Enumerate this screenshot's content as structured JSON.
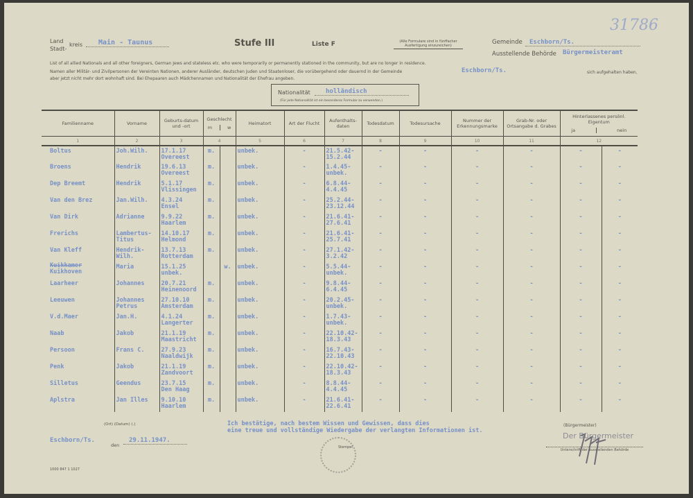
{
  "archive_number": "31786",
  "header": {
    "land_label": "Land",
    "stadt_label": "Stadt-",
    "kreis_label": "kreis",
    "kreis_value": "Main - Taunus",
    "stufe": "Stufe III",
    "liste": "Liste F",
    "instruction_note_1": "(Alle Formulare sind in fünffacher",
    "instruction_note_2": "Ausfertigung einzureichen)",
    "gemeinde_label": "Gemeinde",
    "gemeinde_value": "Eschborn/Ts.",
    "behoerde_label": "Ausstellende Behörde",
    "behoerde_value": "Bürgermeisteramt",
    "intro_en": "List of all allied Nationals and all other foreigners, German Jews and stateless etc. who were temporarily or permanently stationed in the community, but are no longer in residence.",
    "intro_de_1": "Namen aller Militär- und Zivilpersonen der Vereinten Nationen, anderer Ausländer, deutschen Juden und Staatenloser, die vorübergehend oder dauernd in der Gemeinde",
    "intro_de_place": "Eschborn/Ts.",
    "intro_de_2": "sich aufgehalten haben,",
    "intro_de_3": "aber jetzt nicht mehr dort wohnhaft sind.   Bei Ehepaaren auch Mädchennamen und Nationalität der Ehefrau angeben.",
    "nationality_label": "Nationalität",
    "nationality_value": "holländisch",
    "nationality_note": "(Für jede Nationalität ist ein besonderes Formular zu verwenden.)"
  },
  "table": {
    "columns": [
      "Familienname",
      "Vorname",
      "Geburts-datum und -ort",
      "Geschlecht",
      "m",
      "w",
      "Heimatort",
      "Art der Flucht",
      "Aufenthalts-daten",
      "Todesdatum",
      "Todesursache",
      "Nummer der Erkennungsmarke",
      "Grab-Nr. oder Ortsangabe d. Grabes",
      "Hinterlassenes persönl. Eigentum",
      "ja",
      "nein"
    ],
    "column_numbers": [
      "1",
      "2",
      "3",
      "4",
      "5",
      "6",
      "7",
      "8",
      "9",
      "10",
      "11",
      "12"
    ],
    "rows": [
      {
        "name": "Boltus",
        "first": "Joh.Wilh.",
        "birth": "17.1.17",
        "place": "Overeest",
        "m": "m.",
        "w": "",
        "home": "unbek.",
        "flight": "-",
        "stay1": "21.5.42-",
        "stay2": "15.2.44",
        "death": "-",
        "cause": "-",
        "tag": "-",
        "grave": "-",
        "ja": "-",
        "nein": "-"
      },
      {
        "name": "Broens",
        "first": "Hendrik",
        "birth": "19.6.13",
        "place": "Overeest",
        "m": "m.",
        "w": "",
        "home": "unbek.",
        "flight": "-",
        "stay1": "1.4.45-",
        "stay2": "unbek.",
        "death": "-",
        "cause": "-",
        "tag": "-",
        "grave": "-",
        "ja": "-",
        "nein": "-"
      },
      {
        "name": "Dep Breemt",
        "first": "Hendrik",
        "birth": "5.1.17",
        "place": "Vlissingen",
        "m": "m.",
        "w": "",
        "home": "unbek.",
        "flight": "-",
        "stay1": "6.8.44-",
        "stay2": "4.4.45",
        "death": "-",
        "cause": "-",
        "tag": "-",
        "grave": "-",
        "ja": "-",
        "nein": "-"
      },
      {
        "name": "Van den Brez",
        "first": "Jan.Wilh.",
        "birth": "4.3.24",
        "place": "Ensel",
        "m": "m.",
        "w": "",
        "home": "unbek.",
        "flight": "-",
        "stay1": "25.2.44-",
        "stay2": "23.12.44",
        "death": "-",
        "cause": "-",
        "tag": "-",
        "grave": "-",
        "ja": "-",
        "nein": "-"
      },
      {
        "name": "Van Dirk",
        "first": "Adrianne",
        "birth": "9.9.22",
        "place": "Haarlem",
        "m": "m.",
        "w": "",
        "home": "unbek.",
        "flight": "-",
        "stay1": "21.6.41-",
        "stay2": "27.6.41",
        "death": "-",
        "cause": "-",
        "tag": "-",
        "grave": "-",
        "ja": "-",
        "nein": "-"
      },
      {
        "name": "Frerichs",
        "first": "Lambertus-",
        "first2": "Titus",
        "birth": "14.10.17",
        "place": "Helmond",
        "m": "m.",
        "w": "",
        "home": "unbek.",
        "flight": "-",
        "stay1": "21.6.41-",
        "stay2": "25.7.41",
        "death": "-",
        "cause": "-",
        "tag": "-",
        "grave": "-",
        "ja": "-",
        "nein": "-"
      },
      {
        "name": "Van Kleff",
        "first": "Hendrik-",
        "first2": "Wilh.",
        "birth": "13.7.13",
        "place": "Rotterdam",
        "m": "m.",
        "w": "",
        "home": "unbek.",
        "flight": "-",
        "stay1": "27.1.42-",
        "stay2": "3.2.42",
        "death": "-",
        "cause": "-",
        "tag": "-",
        "grave": "-",
        "ja": "-",
        "nein": "-"
      },
      {
        "name": "Kuikhoven",
        "struck": "Kuikkamer",
        "first": "Maria",
        "birth": "15.1.25",
        "place": "unbek.",
        "m": "",
        "w": "w.",
        "home": "unbek.",
        "flight": "-",
        "stay1": "5.5.44-",
        "stay2": "unbek.",
        "death": "-",
        "cause": "-",
        "tag": "-",
        "grave": "-",
        "ja": "-",
        "nein": "-"
      },
      {
        "name": "Laarheer",
        "first": "Johannes",
        "birth": "20.7.21",
        "place": "Heinenoord",
        "m": "m.",
        "w": "",
        "home": "unbek.",
        "flight": "-",
        "stay1": "9.8.44-",
        "stay2": "6.4.45",
        "death": "-",
        "cause": "-",
        "tag": "-",
        "grave": "-",
        "ja": "-",
        "nein": "-"
      },
      {
        "name": "Leeuwen",
        "first": "Johannes",
        "first2": "Petrus",
        "birth": "27.10.10",
        "place": "Amsterdam",
        "m": "m.",
        "w": "",
        "home": "unbek.",
        "flight": "-",
        "stay1": "20.2.45-",
        "stay2": "unbek.",
        "death": "-",
        "cause": "-",
        "tag": "-",
        "grave": "-",
        "ja": "-",
        "nein": "-"
      },
      {
        "name": "V.d.Maer",
        "first": "Jan.H.",
        "birth": "4.1.24",
        "place": "Langerter",
        "m": "m.",
        "w": "",
        "home": "unbek.",
        "flight": "-",
        "stay1": "1.7.43-",
        "stay2": "unbek.",
        "death": "-",
        "cause": "-",
        "tag": "-",
        "grave": "-",
        "ja": "-",
        "nein": "-"
      },
      {
        "name": "Naab",
        "first": "Jakob",
        "birth": "21.1.19",
        "place": "Maastricht",
        "m": "m.",
        "w": "",
        "home": "unbek.",
        "flight": "-",
        "stay1": "22.10.42-",
        "stay2": "18.3.43",
        "death": "-",
        "cause": "-",
        "tag": "-",
        "grave": "-",
        "ja": "-",
        "nein": "-"
      },
      {
        "name": "Persoon",
        "first": "Frans C.",
        "birth": "27.9.23",
        "place": "Naaldwijk",
        "m": "m.",
        "w": "",
        "home": "unbek.",
        "flight": "-",
        "stay1": "16.7.43-",
        "stay2": "22.10.43",
        "death": "-",
        "cause": "-",
        "tag": "-",
        "grave": "-",
        "ja": "-",
        "nein": "-"
      },
      {
        "name": "Penk",
        "first": "Jakob",
        "birth": "21.1.19",
        "place": "Zandvoort",
        "m": "m.",
        "w": "",
        "home": "unbek.",
        "flight": "-",
        "stay1": "22.10.42-",
        "stay2": "18.3.43",
        "death": "-",
        "cause": "-",
        "tag": "-",
        "grave": "-",
        "ja": "-",
        "nein": "-"
      },
      {
        "name": "Silletus",
        "first": "Geendus",
        "birth": "23.7.15",
        "place": "Den Haag",
        "m": "m.",
        "w": "",
        "home": "unbek.",
        "flight": "-",
        "stay1": "8.8.44-",
        "stay2": "4.4.45",
        "death": "-",
        "cause": "-",
        "tag": "-",
        "grave": "-",
        "ja": "-",
        "nein": "-"
      },
      {
        "name": "Aplstra",
        "first": "Jan Illes",
        "birth": "9.10.10",
        "place": "Haarlem",
        "m": "m.",
        "w": "",
        "home": "unbek.",
        "flight": "-",
        "stay1": "21.6.41-",
        "stay2": "22.6.41",
        "death": "-",
        "cause": "-",
        "tag": "-",
        "grave": "-",
        "ja": "-",
        "nein": "-"
      }
    ]
  },
  "footer": {
    "ort_label": "(Ort) (Datum) (.)",
    "place": "Eschborn/Ts.",
    "den_label": "den",
    "date": "29.11.1947.",
    "confirmation_1": "Ich bestätige, nach bestem Wissen und Gewissen, dass dies",
    "confirmation_2": "eine treue und vollständige Wiedergabe der verlangten Informationen ist.",
    "stamp_label": "Stempel",
    "signature_stamp": "Der Bürgermeister",
    "signature_role": "(Bürgermeister)",
    "signature_caption": "Unterschrift der ausstellenden Behörde",
    "form_code": "1000 847 1 1027"
  },
  "colors": {
    "paper": "#dcd9c6",
    "typewriter": "#7690c8",
    "print": "#55544c"
  }
}
